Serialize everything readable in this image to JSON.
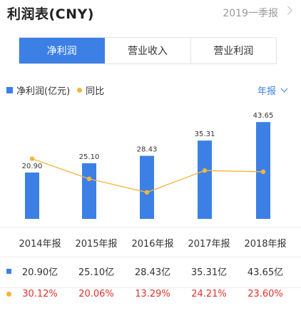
{
  "header": {
    "title": "利润表(CNY)",
    "period": "2019一季报"
  },
  "tabs": [
    {
      "label": "净利润",
      "active": true
    },
    {
      "label": "营业收入",
      "active": false
    },
    {
      "label": "营业利润",
      "active": false
    }
  ],
  "legend": {
    "bar_label": "净利润(亿元)",
    "line_label": "同比"
  },
  "frequency": {
    "label": "年报"
  },
  "colors": {
    "bar": "#3c80e6",
    "line": "#f5b53a",
    "yoy_text": "#e0312b"
  },
  "chart_data": {
    "type": "bar",
    "categories": [
      "2014年报",
      "2015年报",
      "2016年报",
      "2017年报",
      "2018年报"
    ],
    "series": [
      {
        "name": "净利润(亿元)",
        "values": [
          20.9,
          25.1,
          28.43,
          35.31,
          43.65
        ],
        "value_labels": [
          "20.90",
          "25.10",
          "28.43",
          "35.31",
          "43.65"
        ]
      },
      {
        "name": "同比",
        "type": "line",
        "values": [
          30.12,
          20.06,
          13.29,
          24.21,
          23.6
        ]
      }
    ],
    "ylim": [
      0,
      45
    ],
    "y2lim": [
      0,
      50
    ],
    "grid": false
  },
  "table": {
    "years": [
      "2014年报",
      "2015年报",
      "2016年报",
      "2017年报",
      "2018年报"
    ],
    "profit": [
      "20.90亿",
      "25.10亿",
      "28.43亿",
      "35.31亿",
      "43.65亿"
    ],
    "yoy": [
      "30.12%",
      "20.06%",
      "13.29%",
      "24.21%",
      "23.60%"
    ]
  }
}
